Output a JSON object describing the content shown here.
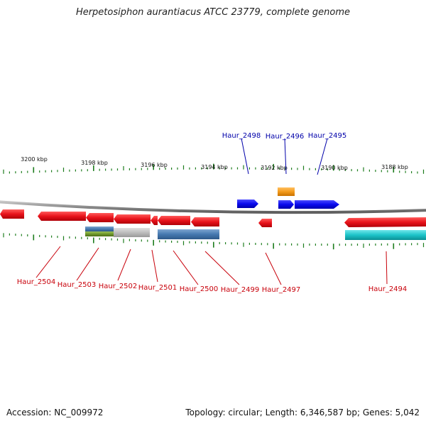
{
  "title": "Herpetosiphon aurantiacus ATCC 23779, complete genome",
  "footer": {
    "accession": "Accession: NC_009972",
    "topology": "Topology: circular; Length: 6,346,587 bp; Genes: 5,042"
  },
  "colors": {
    "backbone": "#8a8a8a",
    "tick": "#1e7d1e",
    "forward_gene": "#0a0aee",
    "reverse_gene": "#e8131b",
    "forward_label": "#0000aa",
    "reverse_label": "#c8000a",
    "orange_feature": "#f39a1b",
    "cyan_feature": "#1cc4c9",
    "steelblue_feature": "#4679b0",
    "gray_feature": "#bdbdbd",
    "olive_feature": "#6f9a2c",
    "tick_label": "#111111"
  },
  "ticks": {
    "labels": [
      "3200 kbp",
      "3198 kbp",
      "3196 kbp",
      "3194 kbp",
      "3192 kbp",
      "3190 kbp",
      "3188 kbp"
    ]
  },
  "genes": {
    "forward": [
      "Haur_2498",
      "Haur_2496",
      "Haur_2495"
    ],
    "reverse": [
      "Haur_2504",
      "Haur_2503",
      "Haur_2502",
      "Haur_2501",
      "Haur_2500",
      "Haur_2499",
      "Haur_2497",
      "Haur_2494"
    ]
  }
}
